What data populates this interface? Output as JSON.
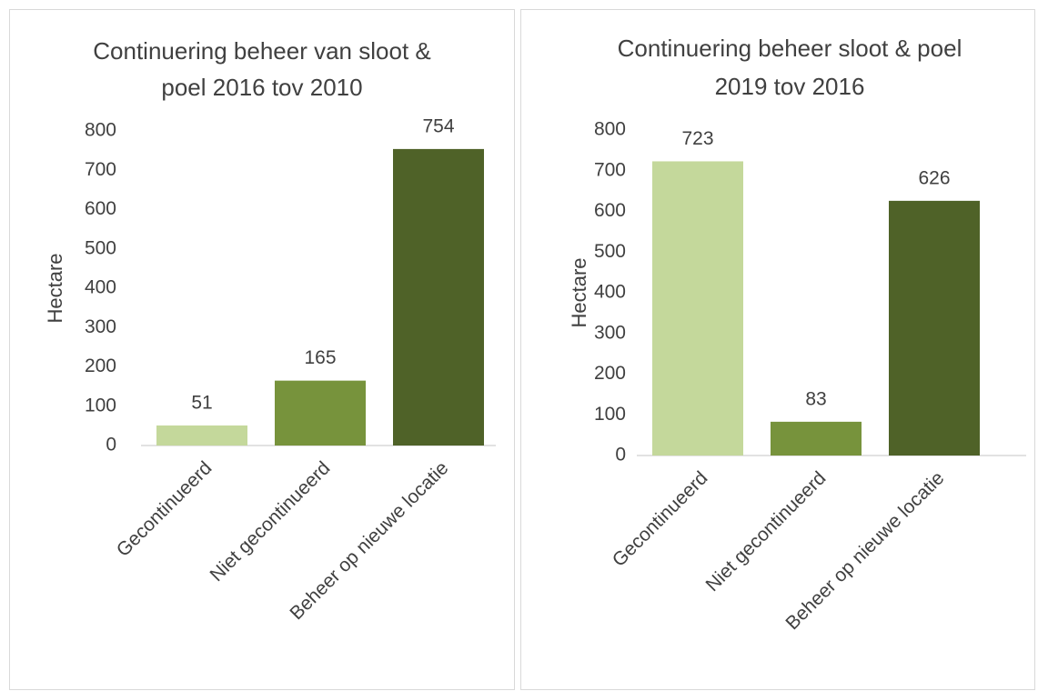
{
  "chart_data": [
    {
      "type": "bar",
      "title": [
        "Continuering beheer van sloot &",
        "poel 2016 tov 2010"
      ],
      "y_label": "Hectare",
      "categories": [
        "Gecontinueerd",
        "Niet gecontinueerd",
        "Beheer op nieuwe locatie"
      ],
      "values": [
        51,
        165,
        754
      ],
      "colors": [
        "#c4d89b",
        "#77933c",
        "#4f6228"
      ],
      "ylim": [
        0,
        800
      ],
      "yticks": [
        0,
        100,
        200,
        300,
        400,
        500,
        600,
        700,
        800
      ],
      "data_labels": true
    },
    {
      "type": "bar",
      "title": [
        "Continuering beheer sloot & poel",
        "2019 tov 2016"
      ],
      "y_label": "Hectare",
      "categories": [
        "Gecontinueerd",
        "Niet gecontinueerd",
        "Beheer op nieuwe locatie"
      ],
      "values": [
        723,
        83,
        626
      ],
      "colors": [
        "#c4d89b",
        "#77933c",
        "#4f6228"
      ],
      "ylim": [
        0,
        800
      ],
      "yticks": [
        0,
        100,
        200,
        300,
        400,
        500,
        600,
        700,
        800
      ],
      "data_labels": true
    }
  ]
}
